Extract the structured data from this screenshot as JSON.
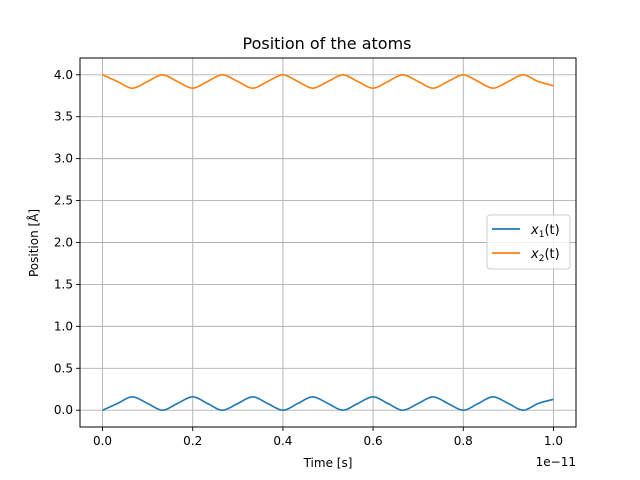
{
  "chart_data": {
    "type": "line",
    "title": "Position of the atoms",
    "xlabel": "Time [s]",
    "ylabel": "Position [Å]",
    "x_offset_label": "1e−11",
    "xlim": [
      -5e-13,
      1.05e-11
    ],
    "ylim": [
      -0.2,
      4.2
    ],
    "x_ticks": [
      0.0,
      2e-12,
      4e-12,
      6e-12,
      8e-12,
      1e-11
    ],
    "x_tick_labels": [
      "0.0",
      "0.2",
      "0.4",
      "0.6",
      "0.8",
      "1.0"
    ],
    "y_ticks": [
      0.0,
      0.5,
      1.0,
      1.5,
      2.0,
      2.5,
      3.0,
      3.5,
      4.0
    ],
    "y_tick_labels": [
      "0.0",
      "0.5",
      "1.0",
      "1.5",
      "2.0",
      "2.5",
      "3.0",
      "3.5",
      "4.0"
    ],
    "grid": true,
    "legend_position": "center-right",
    "series": [
      {
        "name": "x1(t)",
        "label_var": "x",
        "label_sub": "1",
        "label_arg": "(t)",
        "color": "#1f77b4",
        "x": [
          0.0,
          3.3e-13,
          6.6e-13,
          1e-12,
          1.33e-12,
          1.66e-12,
          2e-12,
          2.33e-12,
          2.66e-12,
          3e-12,
          3.33e-12,
          3.66e-12,
          4e-12,
          4.33e-12,
          4.66e-12,
          5e-12,
          5.33e-12,
          5.66e-12,
          6e-12,
          6.33e-12,
          6.66e-12,
          7e-12,
          7.33e-12,
          7.66e-12,
          8e-12,
          8.33e-12,
          8.66e-12,
          9e-12,
          9.33e-12,
          9.66e-12,
          1e-11
        ],
        "y": [
          0.0,
          0.08,
          0.16,
          0.08,
          0.0,
          0.08,
          0.16,
          0.08,
          0.0,
          0.08,
          0.16,
          0.08,
          0.0,
          0.08,
          0.16,
          0.08,
          0.0,
          0.08,
          0.16,
          0.08,
          0.0,
          0.08,
          0.16,
          0.08,
          0.0,
          0.08,
          0.16,
          0.08,
          0.0,
          0.08,
          0.13
        ]
      },
      {
        "name": "x2(t)",
        "label_var": "x",
        "label_sub": "2",
        "label_arg": "(t)",
        "color": "#ff7f0e",
        "x": [
          0.0,
          3.3e-13,
          6.6e-13,
          1e-12,
          1.33e-12,
          1.66e-12,
          2e-12,
          2.33e-12,
          2.66e-12,
          3e-12,
          3.33e-12,
          3.66e-12,
          4e-12,
          4.33e-12,
          4.66e-12,
          5e-12,
          5.33e-12,
          5.66e-12,
          6e-12,
          6.33e-12,
          6.66e-12,
          7e-12,
          7.33e-12,
          7.66e-12,
          8e-12,
          8.33e-12,
          8.66e-12,
          9e-12,
          9.33e-12,
          9.66e-12,
          1e-11
        ],
        "y": [
          4.0,
          3.92,
          3.84,
          3.92,
          4.0,
          3.92,
          3.84,
          3.92,
          4.0,
          3.92,
          3.84,
          3.92,
          4.0,
          3.92,
          3.84,
          3.92,
          4.0,
          3.92,
          3.84,
          3.92,
          4.0,
          3.92,
          3.84,
          3.92,
          4.0,
          3.92,
          3.84,
          3.92,
          4.0,
          3.92,
          3.87
        ]
      }
    ]
  }
}
